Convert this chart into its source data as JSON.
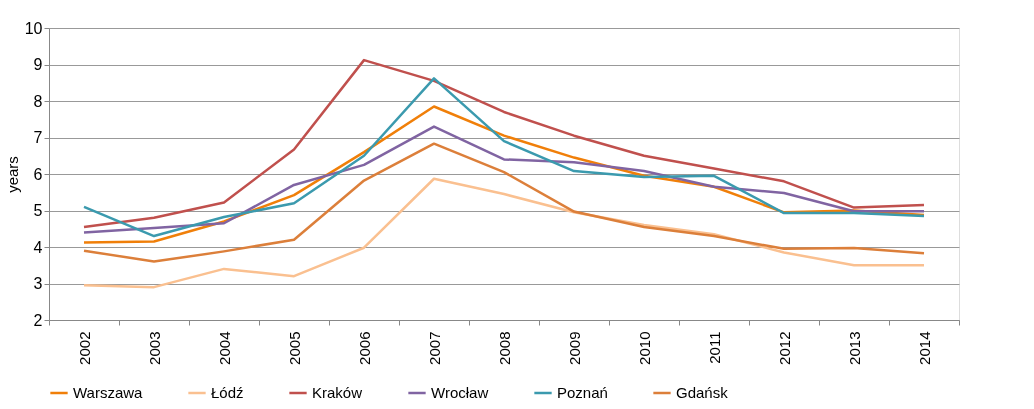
{
  "chart_data": {
    "type": "line",
    "ylabel": "years",
    "categories": [
      "2002",
      "2003",
      "2004",
      "2005",
      "2006",
      "2007",
      "2008",
      "2009",
      "2010",
      "2011",
      "2012",
      "2013",
      "2014"
    ],
    "ylim": [
      2,
      10
    ],
    "yticks": [
      2,
      3,
      4,
      5,
      6,
      7,
      8,
      9,
      10
    ],
    "grid": "y",
    "legend": "bottom",
    "marker": "none",
    "line_style": "solid",
    "series": [
      {
        "name": "Warszawa",
        "color": "#f07f09",
        "values": [
          4.12,
          4.15,
          4.7,
          5.42,
          6.6,
          7.85,
          7.05,
          6.45,
          5.95,
          5.65,
          4.95,
          5.0,
          4.88
        ]
      },
      {
        "name": "Łódź",
        "color": "#fac090",
        "values": [
          2.95,
          2.9,
          3.4,
          3.2,
          3.98,
          5.87,
          5.45,
          4.95,
          4.6,
          4.35,
          3.85,
          3.5,
          3.5
        ]
      },
      {
        "name": "Kraków",
        "color": "#c0504d",
        "values": [
          4.55,
          4.8,
          5.22,
          6.67,
          9.12,
          8.55,
          7.7,
          7.05,
          6.5,
          6.15,
          5.8,
          5.08,
          5.15
        ]
      },
      {
        "name": "Wrocław",
        "color": "#8064a2",
        "values": [
          4.4,
          4.52,
          4.65,
          5.7,
          6.25,
          7.3,
          6.4,
          6.32,
          6.08,
          5.65,
          5.48,
          4.98,
          4.98
        ]
      },
      {
        "name": "Poznań",
        "color": "#3b9aae",
        "values": [
          5.1,
          4.3,
          4.82,
          5.2,
          6.5,
          8.62,
          6.9,
          6.08,
          5.92,
          5.95,
          4.93,
          4.93,
          4.85
        ]
      },
      {
        "name": "Gdańsk",
        "color": "#dc7f3a",
        "values": [
          3.9,
          3.6,
          3.88,
          4.2,
          5.82,
          6.83,
          6.05,
          4.97,
          4.55,
          4.3,
          3.95,
          3.97,
          3.83
        ]
      }
    ]
  }
}
